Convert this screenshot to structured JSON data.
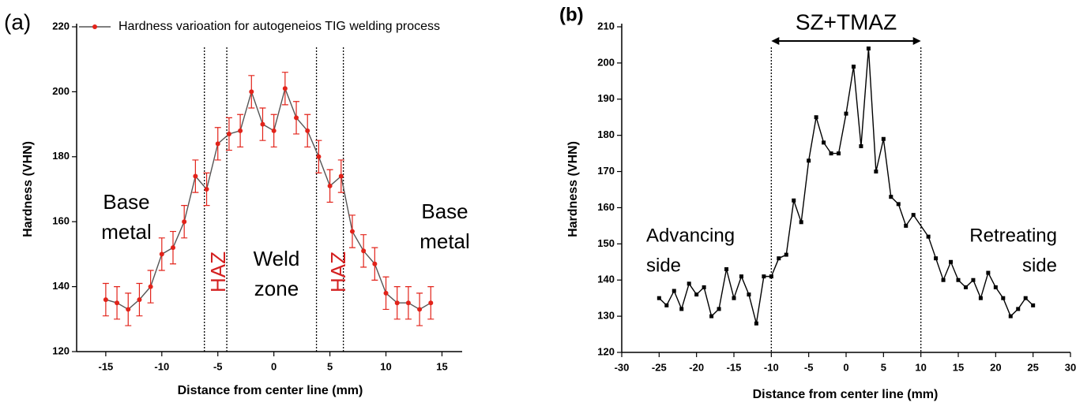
{
  "chart_data": [
    {
      "type": "line",
      "panel_label": "(a)",
      "x_label": "Distance from center line (mm)",
      "y_label": "Hardness (VHN)",
      "x": [
        -15,
        -14,
        -13,
        -12,
        -11,
        -10,
        -9,
        -8,
        -7,
        -6,
        -5,
        -4,
        -3,
        -2,
        -1,
        0,
        1,
        2,
        3,
        4,
        5,
        6,
        7,
        8,
        9,
        10,
        11,
        12,
        13,
        14
      ],
      "series": [
        {
          "name": "Hardness varioation for autogeneios TIG welding process",
          "color": "#e2231a",
          "line_color": "#555555",
          "values": [
            136,
            135,
            133,
            136,
            140,
            150,
            152,
            160,
            174,
            170,
            184,
            187,
            188,
            200,
            190,
            188,
            201,
            192,
            188,
            180,
            171,
            174,
            157,
            151,
            147,
            138,
            135,
            135,
            133,
            135
          ],
          "errors": [
            5,
            5,
            5,
            5,
            5,
            5,
            5,
            5,
            5,
            5,
            5,
            5,
            5,
            5,
            5,
            5,
            5,
            5,
            5,
            5,
            5,
            5,
            5,
            5,
            5,
            5,
            5,
            5,
            5,
            5
          ]
        }
      ],
      "xlim": [
        -17.6,
        16.8
      ],
      "xticks": [
        -15,
        -10,
        -5,
        0,
        5,
        10,
        15
      ],
      "ylim": [
        120,
        220
      ],
      "yticks": [
        120,
        140,
        160,
        180,
        200,
        220
      ],
      "vlines": [
        -6.2,
        -4.2,
        3.8,
        6.2
      ],
      "annotations": [
        {
          "lines": [
            "Base",
            "metal"
          ],
          "color": "#000000"
        },
        {
          "lines": [
            "HAZ"
          ],
          "color": "#d42020"
        },
        {
          "lines": [
            "Weld",
            "zone"
          ],
          "color": "#000000"
        },
        {
          "lines": [
            "HAZ"
          ],
          "color": "#d42020"
        },
        {
          "lines": [
            "Base",
            "metal"
          ],
          "color": "#000000"
        }
      ]
    },
    {
      "type": "line",
      "panel_label": "(b)",
      "x_label": "Distance from center line (mm)",
      "y_label": "Hardness (VHN)",
      "x": [
        -25,
        -24,
        -23,
        -22,
        -21,
        -20,
        -19,
        -18,
        -17,
        -16,
        -15,
        -14,
        -13,
        -12,
        -11,
        -10,
        -9,
        -8,
        -7,
        -6,
        -5,
        -4,
        -3,
        -2,
        -1,
        0,
        1,
        2,
        3,
        4,
        5,
        6,
        7,
        8,
        9,
        11,
        12,
        13,
        14,
        15,
        16,
        17,
        18,
        19,
        20,
        21,
        22,
        23,
        24,
        25
      ],
      "series": [
        {
          "name": null,
          "color": "#000000",
          "line_color": "#000000",
          "values": [
            135,
            133,
            137,
            132,
            139,
            136,
            138,
            130,
            132,
            143,
            135,
            141,
            136,
            128,
            141,
            141,
            146,
            147,
            162,
            156,
            173,
            185,
            178,
            175,
            175,
            186,
            199,
            177,
            204,
            170,
            179,
            163,
            161,
            155,
            158,
            152,
            146,
            140,
            145,
            140,
            138,
            140,
            135,
            142,
            138,
            135,
            130,
            132,
            135,
            133
          ]
        }
      ],
      "xlim": [
        -30,
        30
      ],
      "xticks": [
        -30,
        -25,
        -20,
        -15,
        -10,
        -5,
        0,
        5,
        10,
        15,
        20,
        25,
        30
      ],
      "ylim": [
        120,
        210
      ],
      "yticks": [
        120,
        130,
        140,
        150,
        160,
        170,
        180,
        190,
        200,
        210
      ],
      "vlines": [
        -10,
        10
      ],
      "span": {
        "text": "SZ+TMAZ",
        "from": -10,
        "to": 10
      },
      "annotations": [
        {
          "lines": [
            "Advancing",
            "side"
          ],
          "color": "#000000"
        },
        {
          "lines": [
            "Retreating",
            "side"
          ],
          "color": "#000000"
        }
      ]
    }
  ]
}
